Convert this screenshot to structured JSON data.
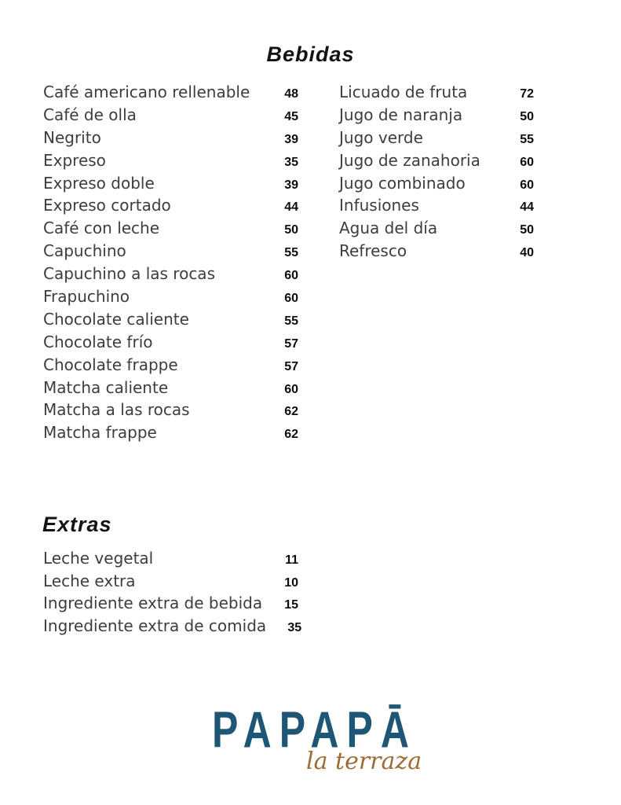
{
  "menu": {
    "bebidas": {
      "title": "Bebidas",
      "left": [
        {
          "name": "Café americano rellenable",
          "price": "48"
        },
        {
          "name": "Café de olla",
          "price": "45"
        },
        {
          "name": "Negrito",
          "price": "39"
        },
        {
          "name": "Expreso",
          "price": "35"
        },
        {
          "name": "Expreso doble",
          "price": "39"
        },
        {
          "name": "Expreso cortado",
          "price": "44"
        },
        {
          "name": "Café con leche",
          "price": "50"
        },
        {
          "name": "Capuchino",
          "price": "55"
        },
        {
          "name": "Capuchino a las rocas",
          "price": "60"
        },
        {
          "name": "Frapuchino",
          "price": "60"
        },
        {
          "name": "Chocolate caliente",
          "price": "55"
        },
        {
          "name": "Chocolate frío",
          "price": "57"
        },
        {
          "name": "Chocolate frappe",
          "price": "57"
        },
        {
          "name": "Matcha caliente",
          "price": "60"
        },
        {
          "name": "Matcha a las rocas",
          "price": "62"
        },
        {
          "name": "Matcha frappe",
          "price": "62"
        }
      ],
      "right": [
        {
          "name": "Licuado de fruta",
          "price": "72"
        },
        {
          "name": "Jugo de naranja",
          "price": "50"
        },
        {
          "name": "Jugo verde",
          "price": "55"
        },
        {
          "name": "Jugo de zanahoria",
          "price": "60"
        },
        {
          "name": "Jugo combinado",
          "price": "60"
        },
        {
          "name": "Infusiones",
          "price": "44"
        },
        {
          "name": "Agua del día",
          "price": "50"
        },
        {
          "name": "Refresco",
          "price": "40"
        }
      ]
    },
    "extras": {
      "title": "Extras",
      "items": [
        {
          "name": "Leche vegetal",
          "price": "11"
        },
        {
          "name": "Leche extra",
          "price": "10"
        },
        {
          "name": "Ingrediente extra de bebida",
          "price": "15"
        },
        {
          "name": "Ingrediente extra de comida",
          "price": "35"
        }
      ]
    }
  },
  "logo": {
    "brand": "PAPAPĀ",
    "tagline": "la terraza",
    "brand_color": "#1e5776",
    "tagline_color": "#a06a33"
  },
  "colors": {
    "background": "#ffffff",
    "heading_text": "#131313",
    "item_text": "#3d3d3d",
    "price_text": "#0c0c0c"
  }
}
